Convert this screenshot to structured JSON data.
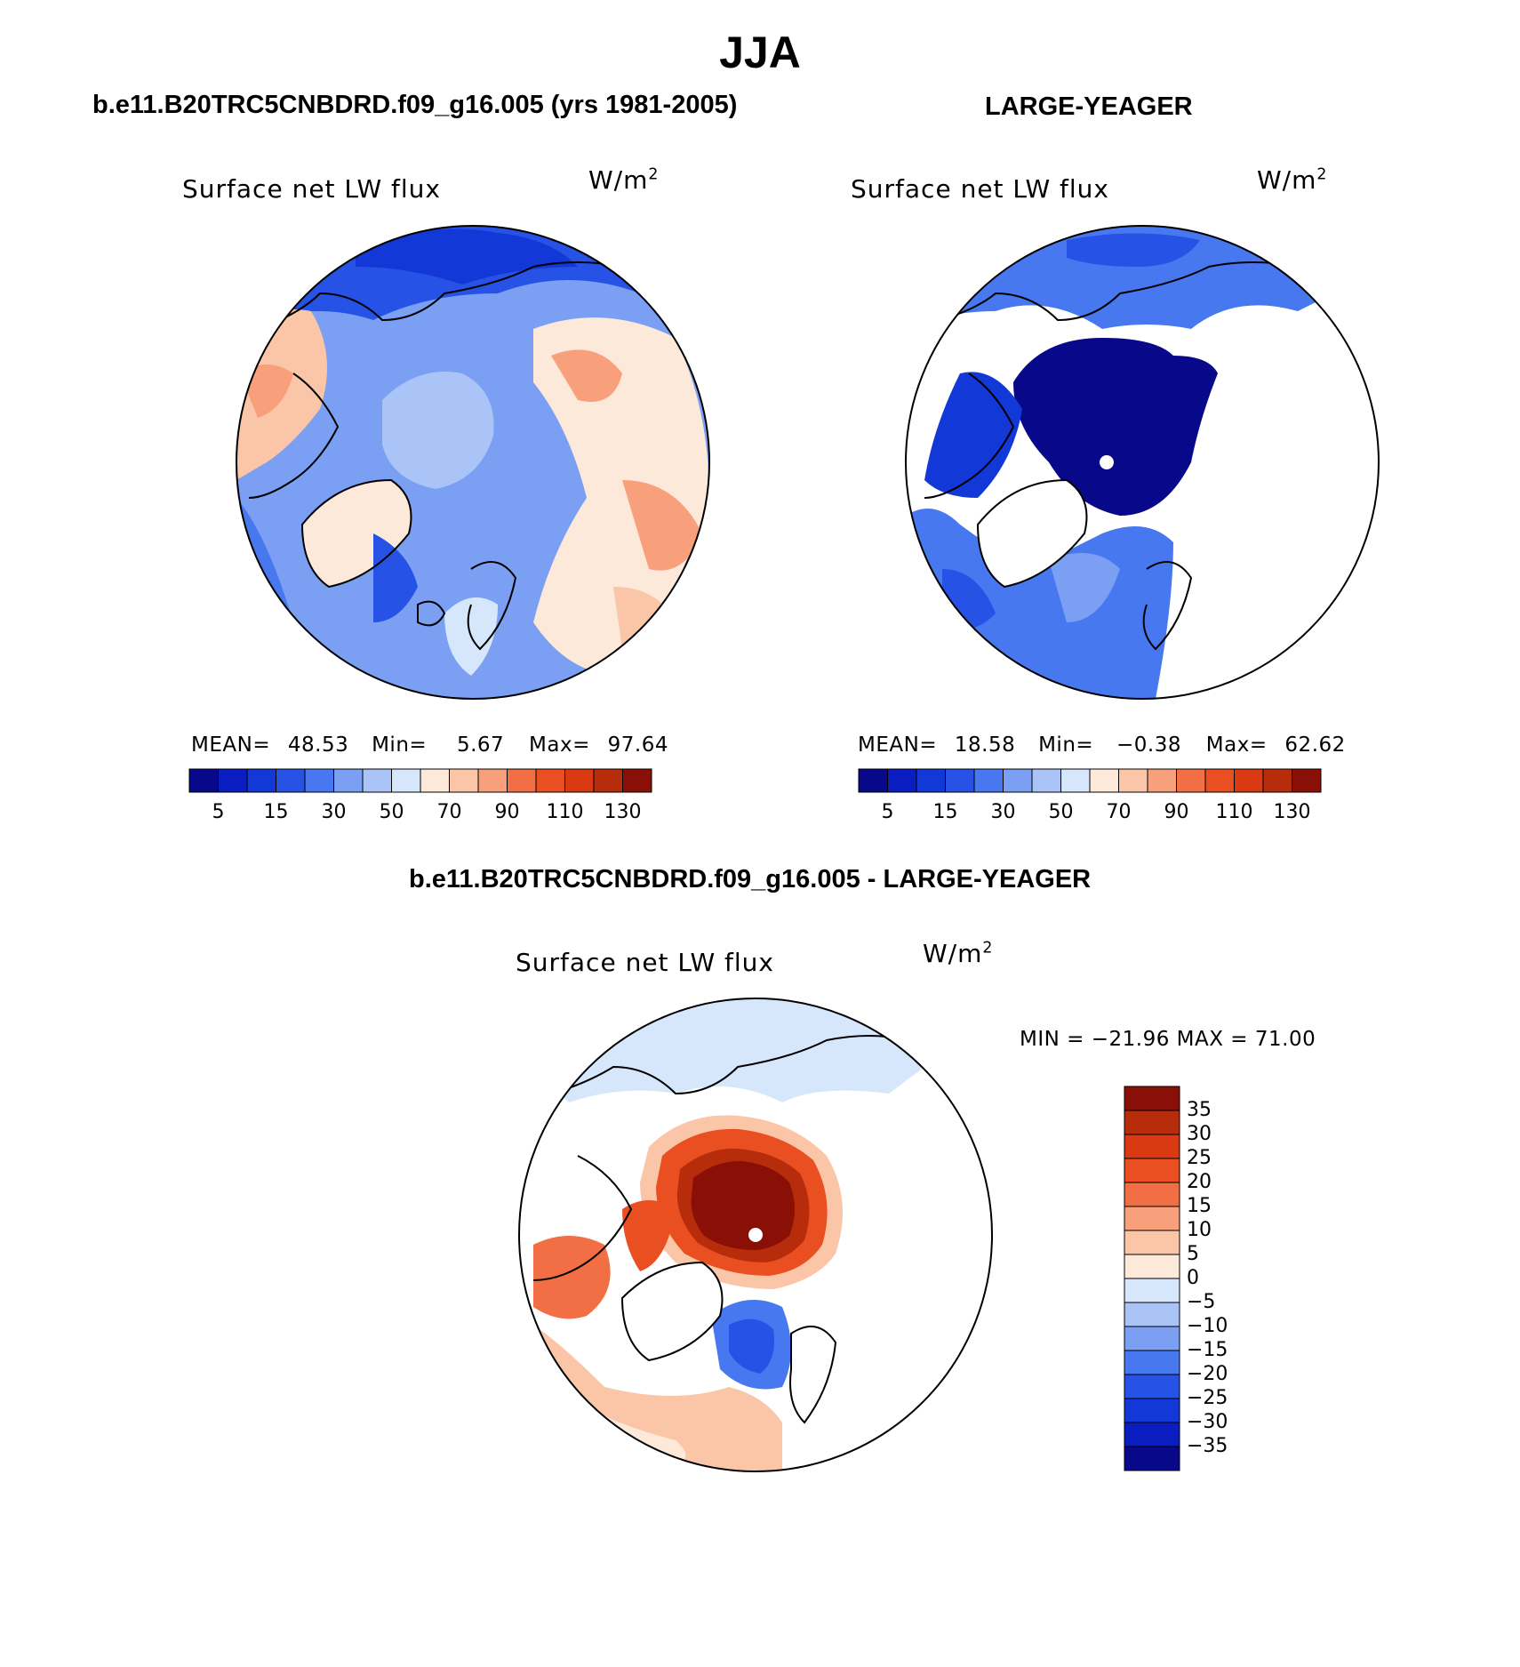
{
  "header": {
    "title": "JJA",
    "left_subtitle": "b.e11.B20TRC5CNBDRD.f09_g16.005 (yrs 1981-2005)",
    "right_subtitle": "LARGE-YEAGER",
    "diff_subtitle": "b.e11.B20TRC5CNBDRD.f09_g16.005 - LARGE-YEAGER"
  },
  "panels": {
    "left": {
      "variable": "Surface net LW flux",
      "units_base": "W/m",
      "units_exp": "2",
      "mean_label": "MEAN=",
      "mean": "48.53",
      "min_label": "Min=",
      "min": "5.67",
      "max_label": "Max=",
      "max": "97.64"
    },
    "right": {
      "variable": "Surface net LW flux",
      "units_base": "W/m",
      "units_exp": "2",
      "mean_label": "MEAN=",
      "mean": "18.58",
      "min_label": "Min=",
      "min": "−0.38",
      "max_label": "Max=",
      "max": "62.62"
    },
    "diff": {
      "variable": "Surface net LW flux",
      "units_base": "W/m",
      "units_exp": "2",
      "minmax_text": "MIN = −21.96 MAX =  71.00"
    }
  },
  "colorbars": {
    "absolute": {
      "colors": [
        "#08088a",
        "#0a1dc0",
        "#1238d8",
        "#2652e6",
        "#4878ef",
        "#7a9ff3",
        "#aac4f7",
        "#d6e6fb",
        "#fde9da",
        "#fbc5a7",
        "#f7a07b",
        "#f26e44",
        "#ea4f22",
        "#d93a12",
        "#b72d0c",
        "#8a0f07"
      ],
      "labels": [
        "5",
        "15",
        "30",
        "50",
        "70",
        "90",
        "110",
        "130"
      ]
    },
    "difference": {
      "colors": [
        "#8a0f07",
        "#b72d0c",
        "#d93a12",
        "#ea4f22",
        "#f26e44",
        "#f7a07b",
        "#fbc5a7",
        "#fde9da",
        "#d6e6fb",
        "#aac4f7",
        "#7a9ff3",
        "#4878ef",
        "#2652e6",
        "#1238d8",
        "#0a1dc0",
        "#08088a"
      ],
      "labels": [
        "35",
        "30",
        "25",
        "20",
        "15",
        "10",
        "5",
        "0",
        "−5",
        "−10",
        "−15",
        "−20",
        "−25",
        "−30",
        "−35"
      ]
    }
  }
}
